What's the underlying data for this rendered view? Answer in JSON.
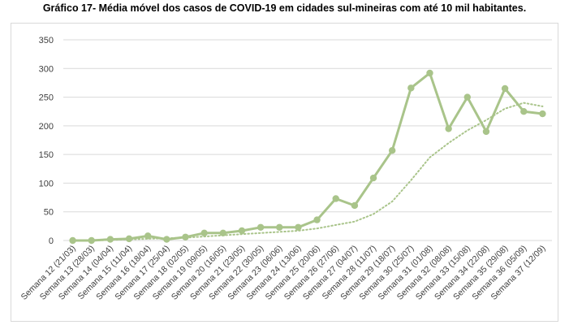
{
  "chart_data": {
    "type": "line",
    "title": "Gráfico 17- Média móvel dos casos de COVID-19 em cidades sul-mineiras com até 10 mil habitantes.",
    "xlabel": "",
    "ylabel": "",
    "ylim": [
      0,
      350
    ],
    "yticks": [
      0,
      50,
      100,
      150,
      200,
      250,
      300,
      350
    ],
    "grid": true,
    "legend": "none",
    "categories": [
      "Semana 12 (21/03)",
      "Semana 13 (28/03)",
      "Semana 14 (04/04)",
      "Semana 15 (11/04)",
      "Semana 16 (18/04)",
      "Semana 17 (25/04)",
      "Semana 18 (02/05)",
      "Semana 19 (09/05)",
      "Semana 20 (16/05)",
      "Semana 21 (23/05)",
      "Semana 22 (30/05)",
      "Semana 23 (06/06)",
      "Semana 24 (13/06)",
      "Semana 25 (20/06)",
      "Semana 26 (27/06)",
      "Semana 27 (04/07)",
      "Semana 28 (11/07)",
      "Semana 29 (18/07)",
      "Semana 30 (25/07)",
      "Semana 31 (01/08)",
      "Semana 32 (08/08)",
      "Semana 33 (15/08)",
      "Semana 34 (22/08)",
      "Semana 35 (29/08)",
      "Semana 36 (05/09)",
      "Semana 37 (12/09)"
    ],
    "series": [
      {
        "type": "line",
        "values": [
          0,
          0,
          2,
          3,
          8,
          2,
          6,
          13,
          13,
          17,
          23,
          23,
          23,
          36,
          73,
          61,
          109,
          157,
          266,
          292,
          195,
          250,
          190,
          265,
          225,
          221
        ]
      },
      {
        "type": "dotted-trend",
        "values": [
          0,
          0,
          1,
          2,
          3,
          4,
          5,
          7,
          9,
          11,
          13,
          15,
          17,
          21,
          27,
          33,
          46,
          68,
          105,
          145,
          170,
          192,
          210,
          230,
          240,
          234
        ]
      }
    ],
    "colors": {
      "series": "#a9c48a",
      "grid": "#d9d9d9",
      "axis": "#d9d9d9"
    }
  }
}
